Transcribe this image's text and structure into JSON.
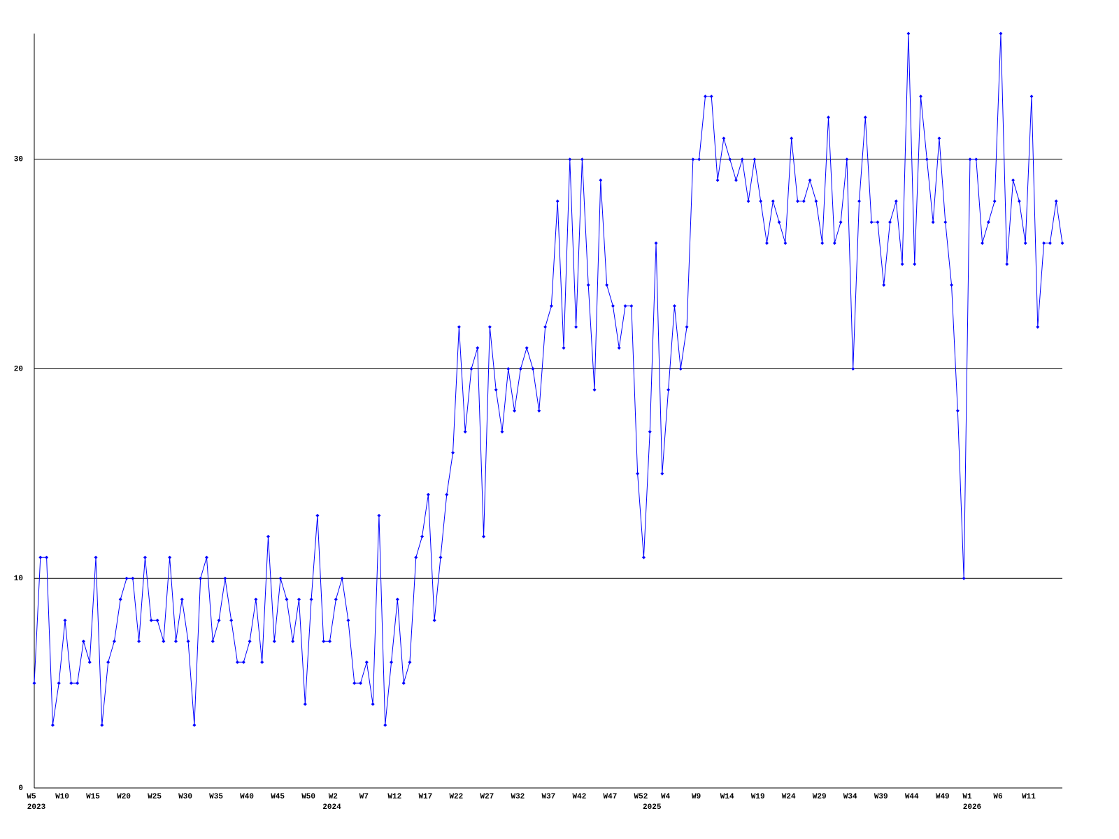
{
  "chart_data": {
    "type": "line",
    "categories": [
      "W5",
      null,
      null,
      null,
      null,
      "W10",
      null,
      null,
      null,
      null,
      "W15",
      null,
      null,
      null,
      null,
      "W20",
      null,
      null,
      null,
      null,
      "W25",
      null,
      null,
      null,
      null,
      "W30",
      null,
      null,
      null,
      null,
      "W35",
      null,
      null,
      null,
      null,
      "W40",
      null,
      null,
      null,
      null,
      "W45",
      null,
      null,
      null,
      null,
      "W50",
      null,
      null,
      null,
      "W2",
      null,
      null,
      null,
      null,
      "W7",
      null,
      null,
      null,
      null,
      "W12",
      null,
      null,
      null,
      null,
      "W17",
      null,
      null,
      null,
      null,
      "W22",
      null,
      null,
      null,
      null,
      "W27",
      null,
      null,
      null,
      null,
      "W32",
      null,
      null,
      null,
      null,
      "W37",
      null,
      null,
      null,
      null,
      "W42",
      null,
      null,
      null,
      null,
      "W47",
      null,
      null,
      null,
      null,
      "W52",
      null,
      null,
      null,
      "W4",
      null,
      null,
      null,
      null,
      "W9",
      null,
      null,
      null,
      null,
      "W14",
      null,
      null,
      null,
      null,
      "W19",
      null,
      null,
      null,
      null,
      "W24",
      null,
      null,
      null,
      null,
      "W29",
      null,
      null,
      null,
      null,
      "W34",
      null,
      null,
      null,
      null,
      "W39",
      null,
      null,
      null,
      null,
      "W44",
      null,
      null,
      null,
      null,
      "W49",
      null,
      null,
      null,
      "W1",
      null,
      null,
      null,
      null,
      "W6",
      null,
      null,
      null,
      null,
      "W11",
      null,
      null,
      null,
      null,
      null
    ],
    "years": [
      "2023",
      null,
      null,
      null,
      null,
      null,
      null,
      null,
      null,
      null,
      null,
      null,
      null,
      null,
      null,
      null,
      null,
      null,
      null,
      null,
      null,
      null,
      null,
      null,
      null,
      null,
      null,
      null,
      null,
      null,
      null,
      null,
      null,
      null,
      null,
      null,
      null,
      null,
      null,
      null,
      null,
      null,
      null,
      null,
      null,
      null,
      null,
      null,
      "2024",
      null,
      null,
      null,
      null,
      null,
      null,
      null,
      null,
      null,
      null,
      null,
      null,
      null,
      null,
      null,
      null,
      null,
      null,
      null,
      null,
      null,
      null,
      null,
      null,
      null,
      null,
      null,
      null,
      null,
      null,
      null,
      null,
      null,
      null,
      null,
      null,
      null,
      null,
      null,
      null,
      null,
      null,
      null,
      null,
      null,
      null,
      null,
      null,
      null,
      null,
      null,
      "2025",
      null,
      null,
      null,
      null,
      null,
      null,
      null,
      null,
      null,
      null,
      null,
      null,
      null,
      null,
      null,
      null,
      null,
      null,
      null,
      null,
      null,
      null,
      null,
      null,
      null,
      null,
      null,
      null,
      null,
      null,
      null,
      null,
      null,
      null,
      null,
      null,
      null,
      null,
      null,
      null,
      null,
      null,
      null,
      null,
      null,
      null,
      null,
      null,
      null,
      null,
      null,
      "2026",
      null,
      null,
      null,
      null,
      null,
      null,
      null,
      null,
      null,
      null,
      null,
      null,
      null,
      null,
      null
    ],
    "series": [
      {
        "color": "#0000ff",
        "values": [
          5,
          11,
          11,
          3,
          5,
          8,
          5,
          5,
          7,
          6,
          11,
          3,
          6,
          7,
          9,
          10,
          10,
          7,
          11,
          8,
          8,
          7,
          11,
          7,
          9,
          7,
          3,
          10,
          11,
          7,
          8,
          10,
          8,
          6,
          6,
          7,
          9,
          6,
          12,
          7,
          10,
          9,
          7,
          9,
          4,
          9,
          13,
          7,
          7,
          9,
          10,
          8,
          5,
          5,
          6,
          4,
          13,
          3,
          6,
          9,
          5,
          6,
          11,
          12,
          14,
          8,
          11,
          14,
          16,
          22,
          17,
          20,
          21,
          12,
          22,
          19,
          17,
          20,
          18,
          20,
          21,
          20,
          18,
          22,
          23,
          28,
          21,
          30,
          22,
          30,
          24,
          19,
          29,
          24,
          23,
          21,
          23,
          23,
          15,
          11,
          17,
          26,
          15,
          19,
          23,
          20,
          22,
          30,
          30,
          33,
          33,
          29,
          31,
          30,
          29,
          30,
          28,
          30,
          28,
          26,
          28,
          27,
          26,
          31,
          28,
          28,
          29,
          28,
          26,
          32,
          26,
          27,
          30,
          20,
          28,
          32,
          27,
          27,
          24,
          27,
          28,
          25,
          36,
          25,
          33,
          30,
          27,
          31,
          27,
          24,
          18,
          10,
          30,
          30,
          26,
          27,
          28,
          36,
          25,
          29,
          28,
          26,
          33,
          22,
          26,
          26,
          28,
          26
        ]
      }
    ],
    "ylim": [
      0,
      36
    ],
    "yticks": [
      0,
      10,
      20,
      30
    ],
    "grid": true
  }
}
